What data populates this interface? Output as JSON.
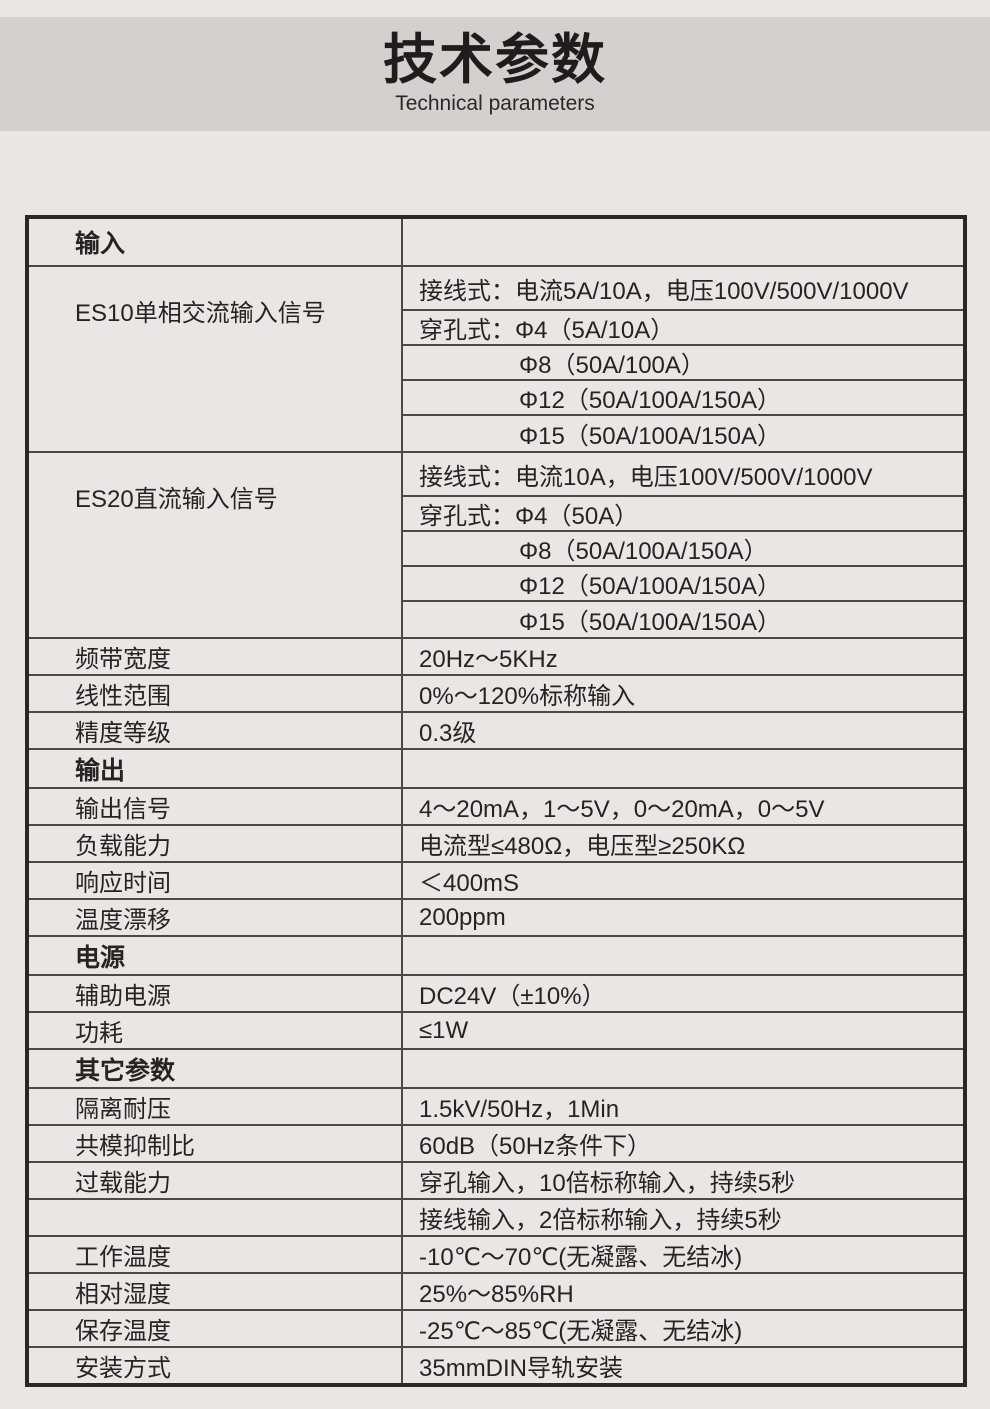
{
  "page": {
    "bg_color": "#e9e7e6",
    "band_color": "#d3d1d0",
    "ink_color": "#262422",
    "border_thin_color": "#4c4845",
    "border_thick_color": "#2a2826"
  },
  "header": {
    "title": "技术参数",
    "subtitle": "Technical parameters"
  },
  "table": {
    "rows": [
      {
        "type": "section",
        "label": "输入",
        "value": ""
      },
      {
        "type": "group",
        "label": "ES10单相交流输入信号",
        "values": [
          "接线式：电流5A/10A，电压100V/500V/1000V",
          "穿孔式：Φ4（5A/10A）",
          "Φ8（50A/100A）",
          "Φ12（50A/100A/150A）",
          "Φ15（50A/100A/150A）"
        ]
      },
      {
        "type": "group",
        "label": "ES20直流输入信号",
        "values": [
          "接线式：电流10A，电压100V/500V/1000V",
          "穿孔式：Φ4（50A）",
          "Φ8（50A/100A/150A）",
          "Φ12（50A/100A/150A）",
          "Φ15（50A/100A/150A）"
        ]
      },
      {
        "type": "simple",
        "label": "频带宽度",
        "value": "20Hz～5KHz"
      },
      {
        "type": "simple",
        "label": "线性范围",
        "value": "0%～120%标称输入"
      },
      {
        "type": "simple",
        "label": "精度等级",
        "value": "0.3级"
      },
      {
        "type": "section",
        "label": "输出",
        "value": ""
      },
      {
        "type": "simple",
        "label": "输出信号",
        "value": "4～20mA，1～5V，0～20mA，0～5V"
      },
      {
        "type": "simple",
        "label": "负载能力",
        "value": "电流型≤480Ω，电压型≥250KΩ"
      },
      {
        "type": "simple",
        "label": "响应时间",
        "value": "＜400mS"
      },
      {
        "type": "simple",
        "label": "温度漂移",
        "value": "200ppm"
      },
      {
        "type": "section",
        "label": "电源",
        "value": ""
      },
      {
        "type": "simple",
        "label": "辅助电源",
        "value": "DC24V（±10%）"
      },
      {
        "type": "simple",
        "label": "功耗",
        "value": "≤1W"
      },
      {
        "type": "section",
        "label": "其它参数",
        "value": ""
      },
      {
        "type": "simple",
        "label": "隔离耐压",
        "value": "1.5kV/50Hz，1Min"
      },
      {
        "type": "simple",
        "label": "共模抑制比",
        "value": "60dB（50Hz条件下）"
      },
      {
        "type": "simple",
        "label": "过载能力",
        "value": "穿孔输入，10倍标称输入，持续5秒"
      },
      {
        "type": "simple",
        "label": "",
        "value": "接线输入，2倍标称输入，持续5秒"
      },
      {
        "type": "simple",
        "label": "工作温度",
        "value": "-10℃～70℃(无凝露、无结冰)"
      },
      {
        "type": "simple",
        "label": "相对湿度",
        "value": "25%～85%RH"
      },
      {
        "type": "simple",
        "label": "保存温度",
        "value": "-25℃～85℃(无凝露、无结冰)"
      },
      {
        "type": "simple",
        "label": "安装方式",
        "value": "35mmDIN导轨安装"
      }
    ]
  }
}
